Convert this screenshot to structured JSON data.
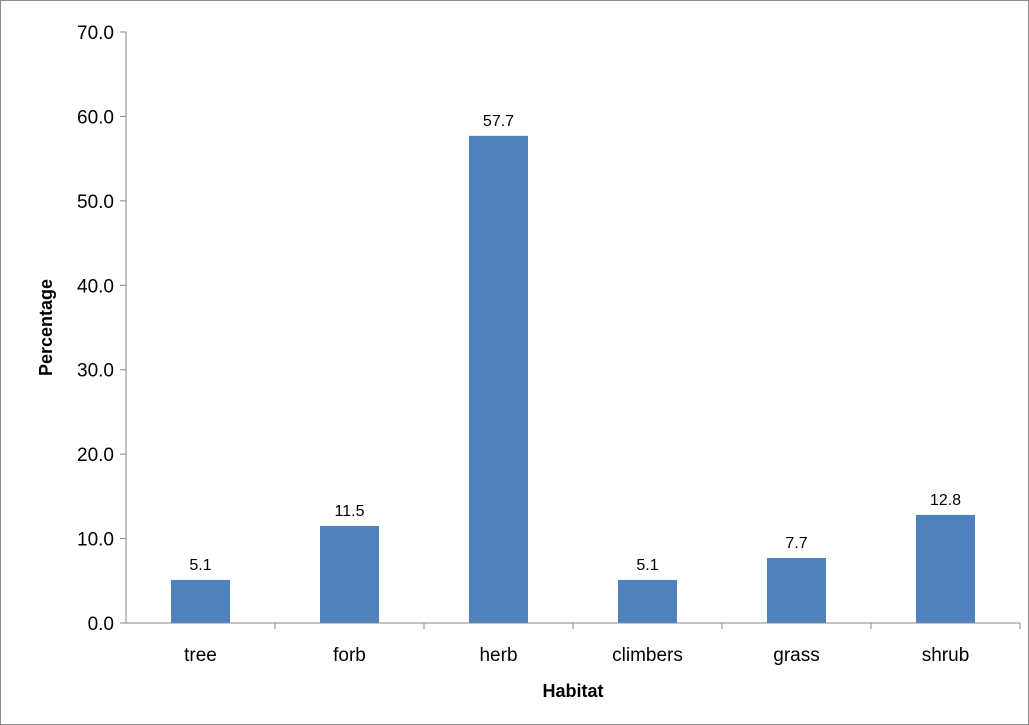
{
  "chart_data": {
    "type": "bar",
    "title": "",
    "xlabel": "Habitat",
    "ylabel": "Percentage",
    "categories": [
      "tree",
      "forb",
      "herb",
      "climbers",
      "grass",
      "shrub"
    ],
    "values": [
      5.1,
      11.5,
      57.7,
      5.1,
      7.7,
      12.8
    ],
    "data_labels": [
      "5.1",
      "11.5",
      "57.7",
      "5.1",
      "7.7",
      "12.8"
    ],
    "ylim": [
      0,
      70
    ],
    "yticks": [
      0,
      10,
      20,
      30,
      40,
      50,
      60,
      70
    ],
    "ytick_labels": [
      "0.0",
      "10.0",
      "20.0",
      "30.0",
      "40.0",
      "50.0",
      "60.0",
      "70.0"
    ],
    "grid": false,
    "legend": "none",
    "bar_color": "#4f81bd"
  }
}
